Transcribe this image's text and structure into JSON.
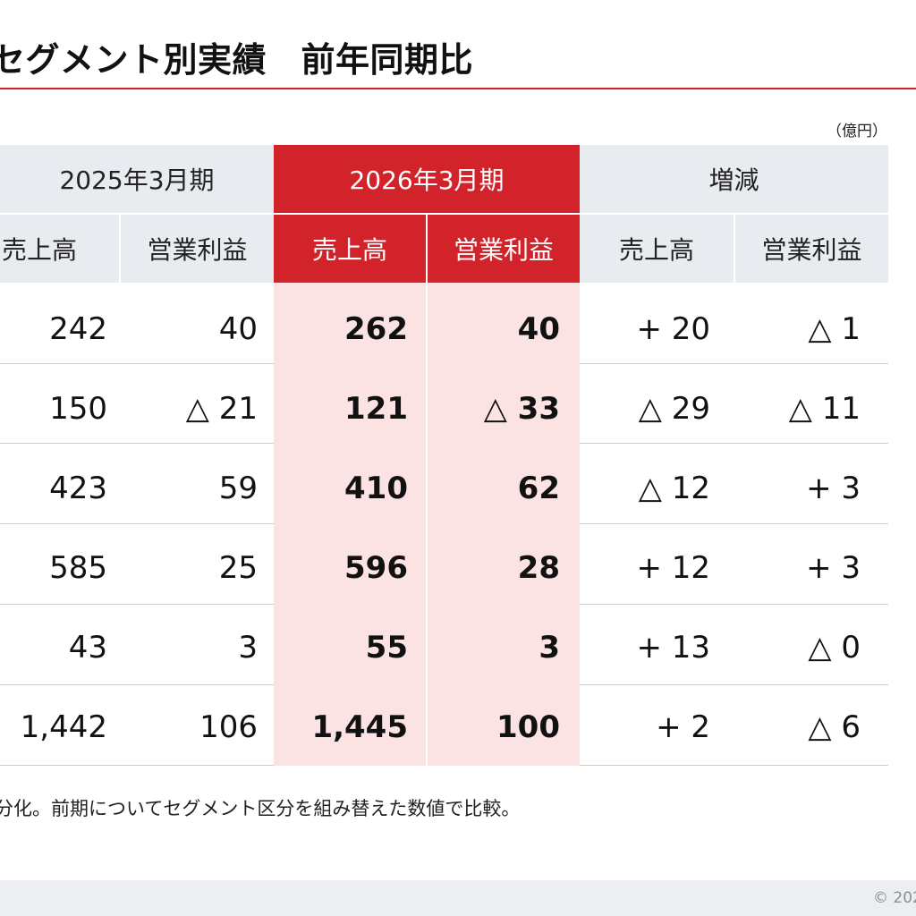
{
  "title": "セグメント別実績　前年同期比",
  "unit": "（億円）",
  "table": {
    "groups": [
      "2025年3月期",
      "2026年3月期",
      "増減"
    ],
    "subheaders": [
      "売上高",
      "営業利益",
      "売上高",
      "営業利益",
      "売上高",
      "営業利益"
    ],
    "rows": [
      [
        "242",
        "40",
        "262",
        "40",
        "+ 20",
        "△ 1"
      ],
      [
        "150",
        "△ 21",
        "121",
        "△ 33",
        "△ 29",
        "△ 11"
      ],
      [
        "423",
        "59",
        "410",
        "62",
        "△ 12",
        "+ 3"
      ],
      [
        "585",
        "25",
        "596",
        "28",
        "+ 12",
        "+ 3"
      ],
      [
        "43",
        "3",
        "55",
        "3",
        "+ 13",
        "△ 0"
      ],
      [
        "1,442",
        "106",
        "1,445",
        "100",
        "+ 2",
        "△ 6"
      ]
    ]
  },
  "footnote": "分化。前期についてセグメント区分を組み替えた数値で比較。",
  "copyright": "© 202",
  "colors": {
    "accent": "#d2232a",
    "highlight": "#fbe3e4",
    "header_grey": "#e8ebef"
  }
}
